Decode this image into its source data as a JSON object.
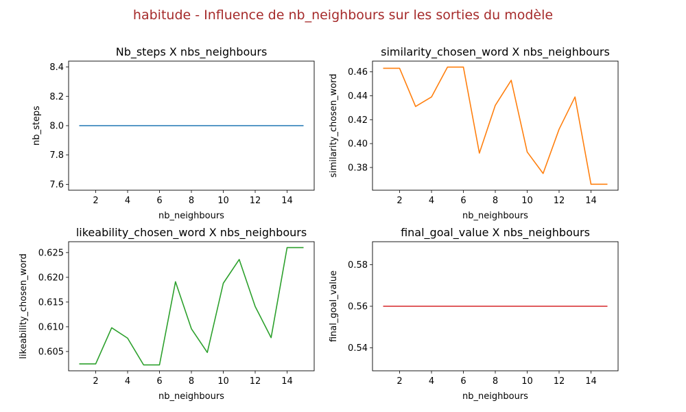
{
  "suptitle": "habitude - Influence de nb_neighbours sur les sorties du modèle",
  "chart_data": [
    {
      "type": "line",
      "title": "Nb_steps X nbs_neighbours",
      "xlabel": "nb_neighbours",
      "ylabel": "nb_steps",
      "color": "#1f77b4",
      "x": [
        1,
        2,
        3,
        4,
        5,
        6,
        7,
        8,
        9,
        10,
        11,
        12,
        13,
        14,
        15
      ],
      "values": [
        8.0,
        8.0,
        8.0,
        8.0,
        8.0,
        8.0,
        8.0,
        8.0,
        8.0,
        8.0,
        8.0,
        8.0,
        8.0,
        8.0,
        8.0
      ],
      "xlim": [
        0.3,
        15.7
      ],
      "ylim": [
        7.56,
        8.44
      ],
      "xticks": [
        2,
        4,
        6,
        8,
        10,
        12,
        14
      ],
      "xtick_labels": [
        "2",
        "4",
        "6",
        "8",
        "10",
        "12",
        "14"
      ],
      "yticks": [
        7.6,
        7.8,
        8.0,
        8.2,
        8.4
      ],
      "ytick_labels": [
        "7.6",
        "7.8",
        "8.0",
        "8.2",
        "8.4"
      ],
      "grid": false
    },
    {
      "type": "line",
      "title": "similarity_chosen_word X nbs_neighbours",
      "xlabel": "nb_neighbours",
      "ylabel": "similarity_chosen_word",
      "color": "#ff7f0e",
      "x": [
        1,
        2,
        3,
        4,
        5,
        6,
        7,
        8,
        9,
        10,
        11,
        12,
        13,
        14,
        15
      ],
      "values": [
        0.463,
        0.463,
        0.431,
        0.439,
        0.464,
        0.464,
        0.392,
        0.432,
        0.453,
        0.393,
        0.375,
        0.412,
        0.439,
        0.366,
        0.366
      ],
      "xlim": [
        0.3,
        15.7
      ],
      "ylim": [
        0.361,
        0.469
      ],
      "xticks": [
        2,
        4,
        6,
        8,
        10,
        12,
        14
      ],
      "xtick_labels": [
        "2",
        "4",
        "6",
        "8",
        "10",
        "12",
        "14"
      ],
      "yticks": [
        0.38,
        0.4,
        0.42,
        0.44,
        0.46
      ],
      "ytick_labels": [
        "0.38",
        "0.40",
        "0.42",
        "0.44",
        "0.46"
      ],
      "grid": false
    },
    {
      "type": "line",
      "title": "likeability_chosen_word X nbs_neighbours",
      "xlabel": "nb_neighbours",
      "ylabel": "likeability_chosen_word",
      "color": "#2ca02c",
      "x": [
        1,
        2,
        3,
        4,
        5,
        6,
        7,
        8,
        9,
        10,
        11,
        12,
        13,
        14,
        15
      ],
      "values": [
        0.6025,
        0.6025,
        0.6098,
        0.6077,
        0.6023,
        0.6023,
        0.6191,
        0.6096,
        0.6048,
        0.6188,
        0.6236,
        0.6141,
        0.6078,
        0.626,
        0.626
      ],
      "xlim": [
        0.3,
        15.7
      ],
      "ylim": [
        0.6011,
        0.6272
      ],
      "xticks": [
        2,
        4,
        6,
        8,
        10,
        12,
        14
      ],
      "xtick_labels": [
        "2",
        "4",
        "6",
        "8",
        "10",
        "12",
        "14"
      ],
      "yticks": [
        0.605,
        0.61,
        0.615,
        0.62,
        0.625
      ],
      "ytick_labels": [
        "0.605",
        "0.610",
        "0.615",
        "0.620",
        "0.625"
      ],
      "grid": false
    },
    {
      "type": "line",
      "title": "final_goal_value X nbs_neighbours",
      "xlabel": "nb_neighbours",
      "ylabel": "final_goal_value",
      "color": "#d62728",
      "x": [
        1,
        2,
        3,
        4,
        5,
        6,
        7,
        8,
        9,
        10,
        11,
        12,
        13,
        14,
        15
      ],
      "values": [
        0.56,
        0.56,
        0.56,
        0.56,
        0.56,
        0.56,
        0.56,
        0.56,
        0.56,
        0.56,
        0.56,
        0.56,
        0.56,
        0.56,
        0.56
      ],
      "xlim": [
        0.3,
        15.7
      ],
      "ylim": [
        0.529,
        0.591
      ],
      "xticks": [
        2,
        4,
        6,
        8,
        10,
        12,
        14
      ],
      "xtick_labels": [
        "2",
        "4",
        "6",
        "8",
        "10",
        "12",
        "14"
      ],
      "yticks": [
        0.54,
        0.56,
        0.58
      ],
      "ytick_labels": [
        "0.54",
        "0.56",
        "0.58"
      ],
      "grid": false
    }
  ]
}
